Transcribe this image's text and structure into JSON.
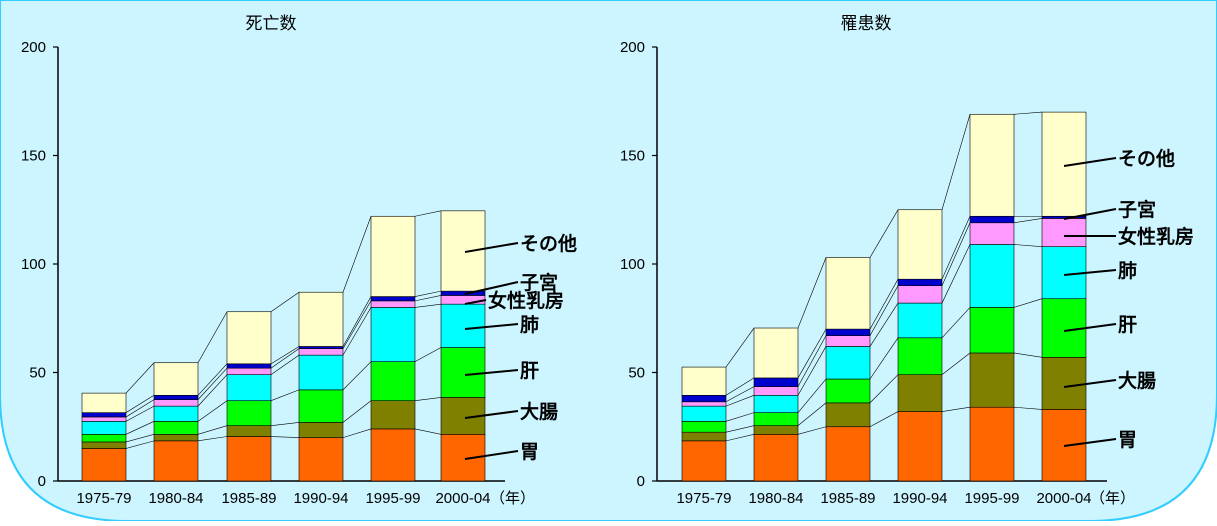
{
  "x_unit": "（年）",
  "colors": {
    "background_panel": "#CCF5FF",
    "border": "#33CCFF",
    "segments": [
      "#FF6600",
      "#808000",
      "#00FF00",
      "#00FFFF",
      "#FF99FF",
      "#0000CC",
      "#FFFFCC"
    ]
  },
  "chart_data": [
    {
      "type": "bar",
      "stacked": true,
      "title": "死亡数",
      "categories": [
        "1975-79",
        "1980-84",
        "1985-89",
        "1990-94",
        "1995-99",
        "2000-04"
      ],
      "ylim": [
        0,
        200
      ],
      "yticks": [
        0,
        50,
        100,
        150,
        200
      ],
      "grid": false,
      "series": [
        {
          "name": "胃",
          "values": [
            15,
            18.5,
            20.5,
            20,
            24,
            21.5
          ]
        },
        {
          "name": "大腸",
          "values": [
            3,
            3,
            5,
            7,
            13,
            17
          ]
        },
        {
          "name": "肝",
          "values": [
            3.5,
            6,
            11.5,
            15,
            18,
            23
          ]
        },
        {
          "name": "肺",
          "values": [
            6,
            7,
            12,
            16,
            25,
            20
          ]
        },
        {
          "name": "女性乳房",
          "values": [
            2,
            3,
            3,
            3,
            3,
            4
          ]
        },
        {
          "name": "子宮",
          "values": [
            2,
            2,
            2,
            1,
            2,
            2
          ]
        },
        {
          "name": "その他",
          "values": [
            9,
            15,
            24,
            25,
            37,
            37
          ]
        }
      ]
    },
    {
      "type": "bar",
      "stacked": true,
      "title": "罹患数",
      "categories": [
        "1975-79",
        "1980-84",
        "1985-89",
        "1990-94",
        "1995-99",
        "2000-04"
      ],
      "ylim": [
        0,
        200
      ],
      "yticks": [
        0,
        50,
        100,
        150,
        200
      ],
      "grid": false,
      "series": [
        {
          "name": "胃",
          "values": [
            18.5,
            21.5,
            25,
            32,
            34,
            33
          ]
        },
        {
          "name": "大腸",
          "values": [
            4,
            4,
            11,
            17,
            25,
            24
          ]
        },
        {
          "name": "肝",
          "values": [
            5,
            6,
            11,
            17,
            21,
            27
          ]
        },
        {
          "name": "肺",
          "values": [
            7,
            8,
            15,
            16,
            29,
            24
          ]
        },
        {
          "name": "女性乳房",
          "values": [
            2,
            4,
            5,
            8,
            10,
            13
          ]
        },
        {
          "name": "子宮",
          "values": [
            3,
            4,
            3,
            3,
            3,
            1
          ]
        },
        {
          "name": "その他",
          "values": [
            13,
            23,
            33,
            32,
            47,
            48
          ]
        }
      ]
    }
  ]
}
